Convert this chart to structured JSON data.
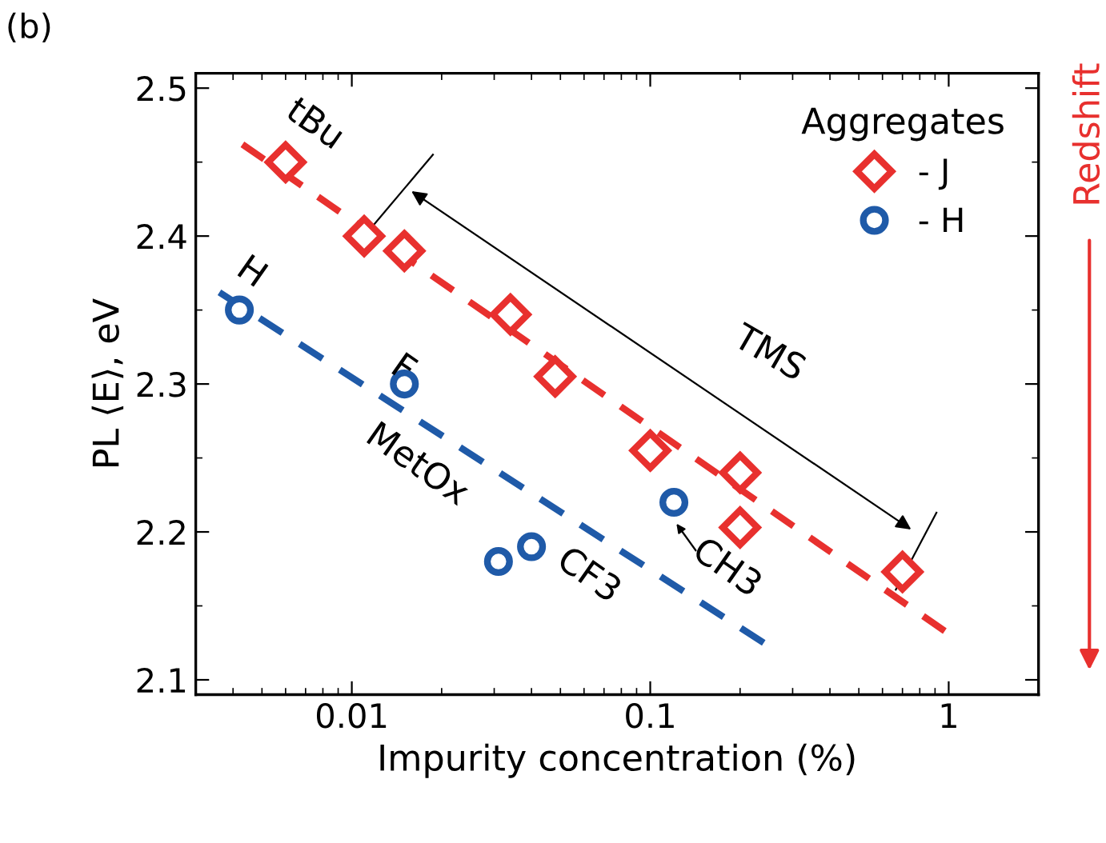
{
  "chart_data": {
    "type": "scatter",
    "xlabel": "Impurity concentration (%)",
    "ylabel": "PL ⟨E⟩, eV",
    "legend_title": "Aggregates",
    "log": "x",
    "xlim": [
      0.003,
      2
    ],
    "ylim": [
      2.09,
      2.51
    ],
    "xticks": [
      0.01,
      0.1,
      1
    ],
    "yticks": [
      2.1,
      2.2,
      2.3,
      2.4,
      2.5
    ],
    "legend": "top right",
    "grid": false,
    "series": [
      {
        "name": "- J",
        "color": "#e8302e",
        "marker": "diamond",
        "x": [
          0.006,
          0.011,
          0.015,
          0.034,
          0.048,
          0.1,
          0.2,
          0.2,
          0.7
        ],
        "values": [
          2.45,
          2.4,
          2.39,
          2.347,
          2.305,
          2.255,
          2.24,
          2.203,
          2.173
        ]
      },
      {
        "name": "- H",
        "color": "#1f5aa8",
        "marker": "circle",
        "x": [
          0.0042,
          0.015,
          0.031,
          0.04,
          0.12
        ],
        "values": [
          2.35,
          2.3,
          2.18,
          2.19,
          2.22
        ]
      },
      {
        "type": "line",
        "color": "#e8302e",
        "line_style": "dashed",
        "marker": "none",
        "x": [
          0.0043,
          0.97
        ],
        "values": [
          2.462,
          2.133
        ]
      },
      {
        "type": "line",
        "color": "#1f5aa8",
        "line_style": "dashed",
        "marker": "none",
        "x": [
          0.0036,
          0.24
        ],
        "values": [
          2.362,
          2.125
        ]
      }
    ],
    "annotations": [
      "(b)",
      "Redshift",
      {
        "text": "tBu",
        "x": 0.006,
        "y": 2.45
      },
      {
        "text": "H",
        "x": 0.0042,
        "y": 2.35
      },
      {
        "text": "F",
        "x": 0.015,
        "y": 2.3
      },
      {
        "text": "MetOx",
        "x": 0.031,
        "y": 2.18
      },
      {
        "text": "CF3",
        "x": 0.04,
        "y": 2.19
      },
      {
        "text": "CH3",
        "x": 0.12,
        "y": 2.22
      },
      "TMS"
    ]
  }
}
